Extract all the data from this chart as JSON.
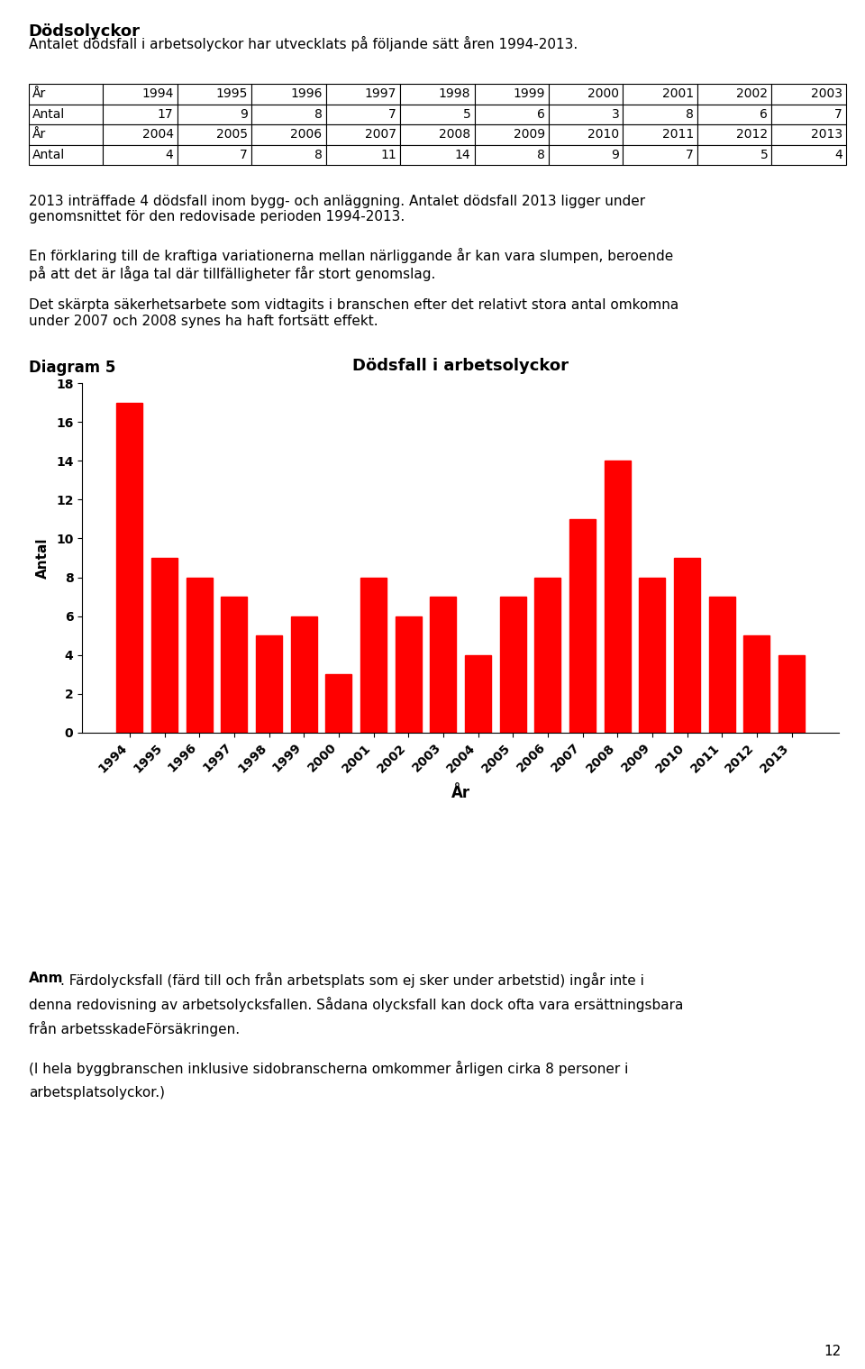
{
  "title_bold": "Dödsolyckor",
  "intro_text": "Antalet dödsfall i arbetsolyckor har utvecklats på följande sätt åren 1994-2013.",
  "table_row1_years": [
    "År",
    "1994",
    "1995",
    "1996",
    "1997",
    "1998",
    "1999",
    "2000",
    "2001",
    "2002",
    "2003"
  ],
  "table_row1_values": [
    "Antal",
    "17",
    "9",
    "8",
    "7",
    "5",
    "6",
    "3",
    "8",
    "6",
    "7"
  ],
  "table_row2_years": [
    "År",
    "2004",
    "2005",
    "2006",
    "2007",
    "2008",
    "2009",
    "2010",
    "2011",
    "2012",
    "2013"
  ],
  "table_row2_values": [
    "Antal",
    "4",
    "7",
    "8",
    "11",
    "14",
    "8",
    "9",
    "7",
    "5",
    "4"
  ],
  "para1": "2013 inträffade 4 dödsfall inom bygg- och anläggning. Antalet dödsfall 2013 ligger under\ngenomsnittet för den redovisade perioden 1994-2013.",
  "para2": "En förklaring till de kraftiga variationerna mellan närliggande år kan vara slumpen, beroende\npå att det är låga tal där tillfälligheter får stort genomslag.",
  "para3": "Det skärpta säkerhetsarbete som vidtagits i branschen efter det relativt stora antal omkomna\nunder 2007 och 2008 synes ha haft fortsätt effekt.",
  "diagram_label": "Diagram 5",
  "chart_title": "Dödsfall i arbetsolyckor",
  "xlabel": "År",
  "ylabel": "Antal",
  "years": [
    "1994",
    "1995",
    "1996",
    "1997",
    "1998",
    "1999",
    "2000",
    "2001",
    "2002",
    "2003",
    "2004",
    "2005",
    "2006",
    "2007",
    "2008",
    "2009",
    "2010",
    "2011",
    "2012",
    "2013"
  ],
  "values": [
    17,
    9,
    8,
    7,
    5,
    6,
    3,
    8,
    6,
    7,
    4,
    7,
    8,
    11,
    14,
    8,
    9,
    7,
    5,
    4
  ],
  "bar_color": "#ff0000",
  "ylim": [
    0,
    18
  ],
  "yticks": [
    0,
    2,
    4,
    6,
    8,
    10,
    12,
    14,
    16,
    18
  ],
  "anm_bold": "Anm",
  "anm_text": ". Färdolycksfall (färd till och från arbetsplats som ej sker under arbetstid) ingår inte i denna redovisning av arbetsolycksfallen. Sådana olycksfall kan dock ofta vara ersättningsbara från arbetsskadeFörsäkringen.",
  "anm_line1": ". Färdolycksfall (färd till och från arbetsplats som ej sker under arbetstid) ingår inte i",
  "anm_line2": "denna redovisning av arbetsolycksfallen. Sådana olycksfall kan dock ofta vara ersättningsbara",
  "anm_line3": "från arbetsskadeFörsäkringen.",
  "anm_text2_line1": "(I hela byggbranschen inklusive sidobranscherna omkommer årligen cirka 8 personer i",
  "anm_text2_line2": "arbetsplatsolyckor.)",
  "page_number": "12",
  "background_color": "#ffffff",
  "fig_width": 9.6,
  "fig_height": 15.19
}
